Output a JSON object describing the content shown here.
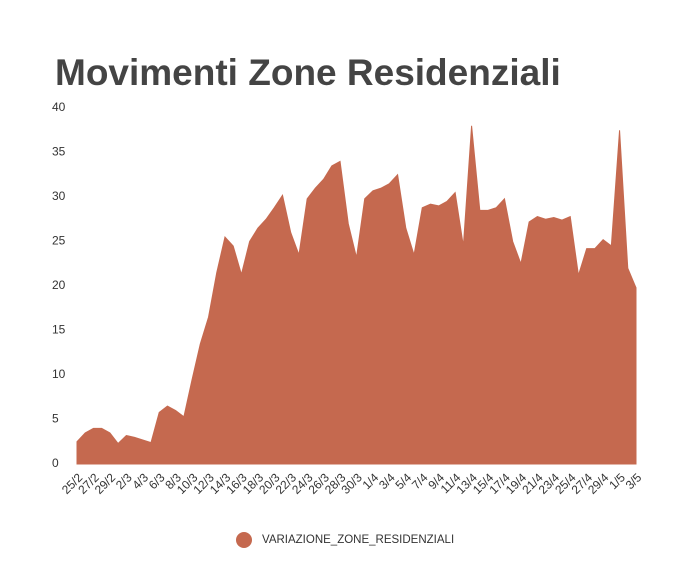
{
  "chart_data": {
    "type": "area",
    "title": "Movimenti Zone Residenziali",
    "categories": [
      "25/2",
      null,
      "27/2",
      null,
      "29/2",
      null,
      "2/3",
      null,
      "4/3",
      null,
      "6/3",
      null,
      "8/3",
      null,
      "10/3",
      null,
      "12/3",
      null,
      "14/3",
      null,
      "16/3",
      null,
      "18/3",
      null,
      "20/3",
      null,
      "22/3",
      null,
      "24/3",
      null,
      "26/3",
      null,
      "28/3",
      null,
      "30/3",
      null,
      "1/4",
      null,
      "3/4",
      null,
      "5/4",
      null,
      "7/4",
      null,
      "9/4",
      null,
      "11/4",
      null,
      "13/4",
      null,
      "15/4",
      null,
      "17/4",
      null,
      "19/4",
      null,
      "21/4",
      null,
      "23/4",
      null,
      "25/4",
      null,
      "27/4",
      null,
      "29/4",
      null,
      "1/5",
      null,
      "3/5"
    ],
    "series": [
      {
        "name": "VARIAZIONE_ZONE_RESIDENZIALI",
        "color": "#c5694f",
        "values": [
          2.5,
          3.5,
          4,
          4,
          3.5,
          2.3,
          3.2,
          3,
          2.7,
          2.4,
          5.8,
          6.5,
          6,
          5.3,
          9.5,
          13.5,
          16.5,
          21.5,
          25.5,
          24.5,
          21.3,
          25,
          26.5,
          27.5,
          28.8,
          30.2,
          26,
          23.5,
          29.8,
          31,
          32,
          33.5,
          34,
          27,
          23.2,
          29.8,
          30.7,
          31,
          31.5,
          32.5,
          26.5,
          23.5,
          28.8,
          29.2,
          29,
          29.5,
          30.5,
          24.5,
          38,
          28.5,
          28.5,
          28.8,
          29.8,
          25,
          22.5,
          27.2,
          27.8,
          27.5,
          27.7,
          27.4,
          27.8,
          21.2,
          24.2,
          24.2,
          25.2,
          24.5,
          37.5,
          22,
          19.8
        ]
      }
    ],
    "ylim": [
      0,
      40
    ],
    "yticks": [
      0,
      5,
      10,
      15,
      20,
      25,
      30,
      35,
      40
    ],
    "grid": false,
    "legend": "bottom"
  }
}
